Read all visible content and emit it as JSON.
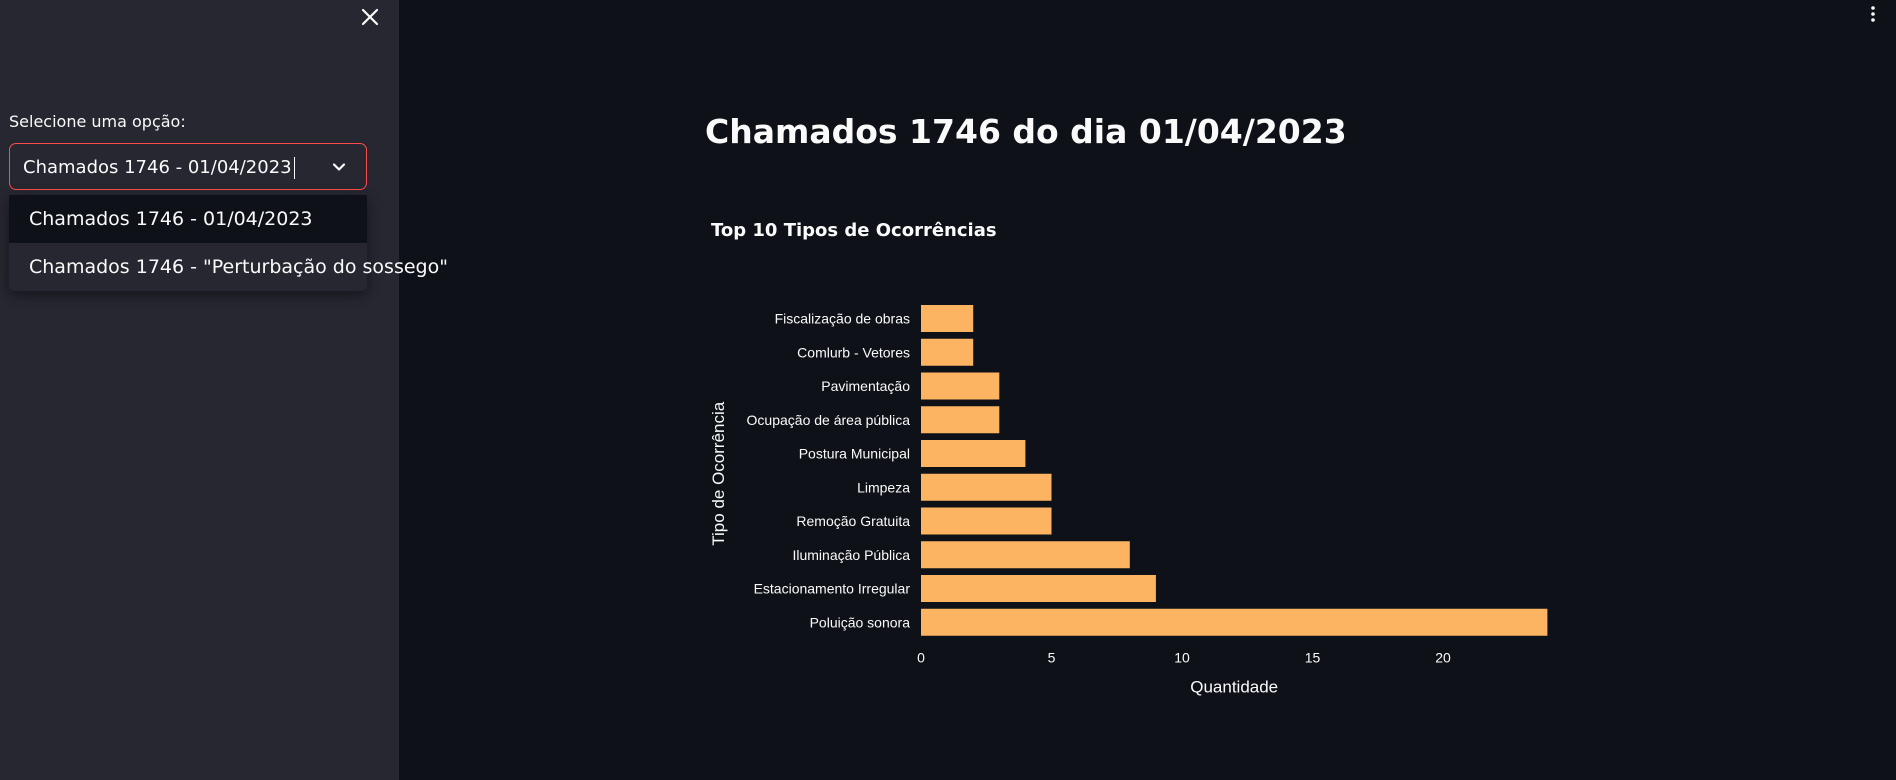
{
  "sidebar": {
    "select_label": "Selecione uma opção:",
    "selected_value": "Chamados 1746 - 01/04/2023",
    "options": [
      "Chamados 1746 - 01/04/2023",
      "Chamados 1746 - \"Perturbação do sossego\""
    ]
  },
  "icons": {
    "close": "close-icon",
    "menu": "kebab-menu-icon",
    "dropdown": "chevron-down-icon"
  },
  "main": {
    "title": "Chamados 1746 do dia 01/04/2023"
  },
  "colors": {
    "accent": "#ff4b4b",
    "bar": "#fdb462",
    "background": "#0e1117",
    "sidebar": "#262730"
  },
  "chart_data": {
    "type": "bar",
    "orientation": "horizontal",
    "title": "Top 10 Tipos de Ocorrências",
    "xlabel": "Quantidade",
    "ylabel": "Tipo de Ocorrência",
    "categories": [
      "Fiscalização de obras",
      "Comlurb - Vetores",
      "Pavimentação",
      "Ocupação de área pública",
      "Postura Municipal",
      "Limpeza",
      "Remoção Gratuita",
      "Iluminação Pública",
      "Estacionamento Irregular",
      "Poluição sonora"
    ],
    "values": [
      2,
      2,
      3,
      3,
      4,
      5,
      5,
      8,
      9,
      24
    ],
    "xticks": [
      0,
      5,
      10,
      15,
      20
    ],
    "xlim": [
      0,
      24
    ],
    "grid": false
  }
}
